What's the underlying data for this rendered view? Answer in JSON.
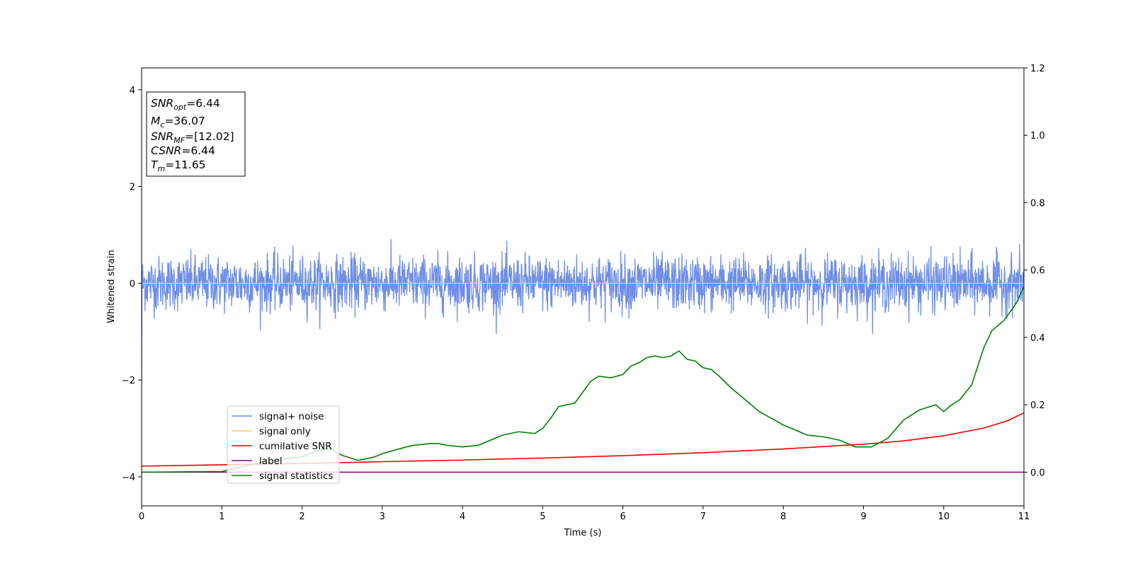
{
  "chart_data": {
    "type": "line",
    "xlabel": "Time (s)",
    "ylabel": "Whitened strain",
    "xlim": [
      0,
      11
    ],
    "ylim_left": [
      -4.6,
      4.45
    ],
    "ylim_right": [
      -0.1,
      1.2
    ],
    "x_ticks": [
      "0",
      "1",
      "2",
      "3",
      "4",
      "5",
      "6",
      "7",
      "8",
      "9",
      "10",
      "11"
    ],
    "y_left_ticks": [
      {
        "value": 4,
        "label": "4"
      },
      {
        "value": 2,
        "label": "2"
      },
      {
        "value": 0,
        "label": "0"
      },
      {
        "value": -2,
        "label": "−2"
      },
      {
        "value": -4,
        "label": "−4"
      }
    ],
    "y_right_ticks": [
      {
        "value": 0.0,
        "label": "0.0"
      },
      {
        "value": 0.2,
        "label": "0.2"
      },
      {
        "value": 0.4,
        "label": "0.4"
      },
      {
        "value": 0.6,
        "label": "0.6"
      },
      {
        "value": 0.8,
        "label": "0.8"
      },
      {
        "value": 1.0,
        "label": "1.0"
      },
      {
        "value": 1.2,
        "label": "1.2"
      }
    ],
    "legend": {
      "location": "lower-left",
      "entries": [
        {
          "label": "signal+ noise",
          "color": "#6f8ee8"
        },
        {
          "label": "signal only",
          "color": "#ffc870"
        },
        {
          "label": "cumilative SNR",
          "color": "#ff0000"
        },
        {
          "label": "label",
          "color": "#800080"
        },
        {
          "label": "signal statistics",
          "color": "#008000"
        }
      ]
    },
    "annotation": {
      "location": "top-left",
      "lines": [
        {
          "base": "SNR",
          "sub": "opt",
          "value": "=6.44"
        },
        {
          "base": "M",
          "sub": "c",
          "value": "=36.07"
        },
        {
          "base": "SNR",
          "sub": "MF",
          "value": "=[12.02]"
        },
        {
          "base": "CSNR",
          "sub": "",
          "value": "=6.44"
        },
        {
          "base": "T",
          "sub": "m",
          "value": "=11.65"
        }
      ]
    },
    "series": [
      {
        "name": "signal+ noise",
        "axis": "left",
        "color": "#6f8ee8",
        "description": "whitened noise, roughly uniform amplitude",
        "amplitude_typical": 0.45,
        "amplitude_max": 1.05,
        "x_range": [
          0,
          11
        ]
      },
      {
        "name": "signal only",
        "axis": "left",
        "color": "#ffc870",
        "x": [
          0,
          11
        ],
        "y": [
          0,
          0
        ]
      },
      {
        "name": "cumilative SNR",
        "axis": "right",
        "color": "#ff0000",
        "x": [
          0,
          1,
          2,
          3,
          4,
          5,
          6,
          7,
          8,
          9,
          9.5,
          10,
          10.5,
          10.8,
          11
        ],
        "y": [
          0.018,
          0.022,
          0.026,
          0.031,
          0.036,
          0.042,
          0.049,
          0.058,
          0.069,
          0.083,
          0.093,
          0.108,
          0.131,
          0.153,
          0.176
        ]
      },
      {
        "name": "label",
        "axis": "right",
        "color": "#800080",
        "x": [
          0,
          11
        ],
        "y": [
          0,
          0
        ]
      },
      {
        "name": "signal statistics",
        "axis": "right",
        "color": "#008000",
        "x": [
          0,
          1,
          1.5,
          1.8,
          2.0,
          2.2,
          2.35,
          2.5,
          2.7,
          2.9,
          3.0,
          3.3,
          3.4,
          3.6,
          3.7,
          3.8,
          4.0,
          4.2,
          4.5,
          4.7,
          4.9,
          5.0,
          5.1,
          5.2,
          5.4,
          5.6,
          5.7,
          5.85,
          6.0,
          6.1,
          6.2,
          6.3,
          6.4,
          6.5,
          6.6,
          6.7,
          6.8,
          6.9,
          7.0,
          7.1,
          7.2,
          7.35,
          7.5,
          7.7,
          7.85,
          8.0,
          8.3,
          8.5,
          8.7,
          8.9,
          9.1,
          9.3,
          9.5,
          9.7,
          9.9,
          10.0,
          10.1,
          10.2,
          10.35,
          10.5,
          10.6,
          10.75,
          10.9,
          11.0
        ],
        "y": [
          0.0,
          0.002,
          0.03,
          0.04,
          0.045,
          0.065,
          0.07,
          0.05,
          0.035,
          0.045,
          0.055,
          0.075,
          0.08,
          0.085,
          0.085,
          0.08,
          0.075,
          0.08,
          0.11,
          0.12,
          0.115,
          0.13,
          0.16,
          0.195,
          0.205,
          0.27,
          0.285,
          0.28,
          0.29,
          0.315,
          0.325,
          0.34,
          0.345,
          0.34,
          0.345,
          0.36,
          0.335,
          0.33,
          0.31,
          0.305,
          0.285,
          0.25,
          0.22,
          0.18,
          0.16,
          0.14,
          0.11,
          0.105,
          0.095,
          0.075,
          0.075,
          0.1,
          0.155,
          0.185,
          0.2,
          0.18,
          0.2,
          0.215,
          0.26,
          0.37,
          0.42,
          0.45,
          0.5,
          0.55
        ]
      }
    ]
  }
}
